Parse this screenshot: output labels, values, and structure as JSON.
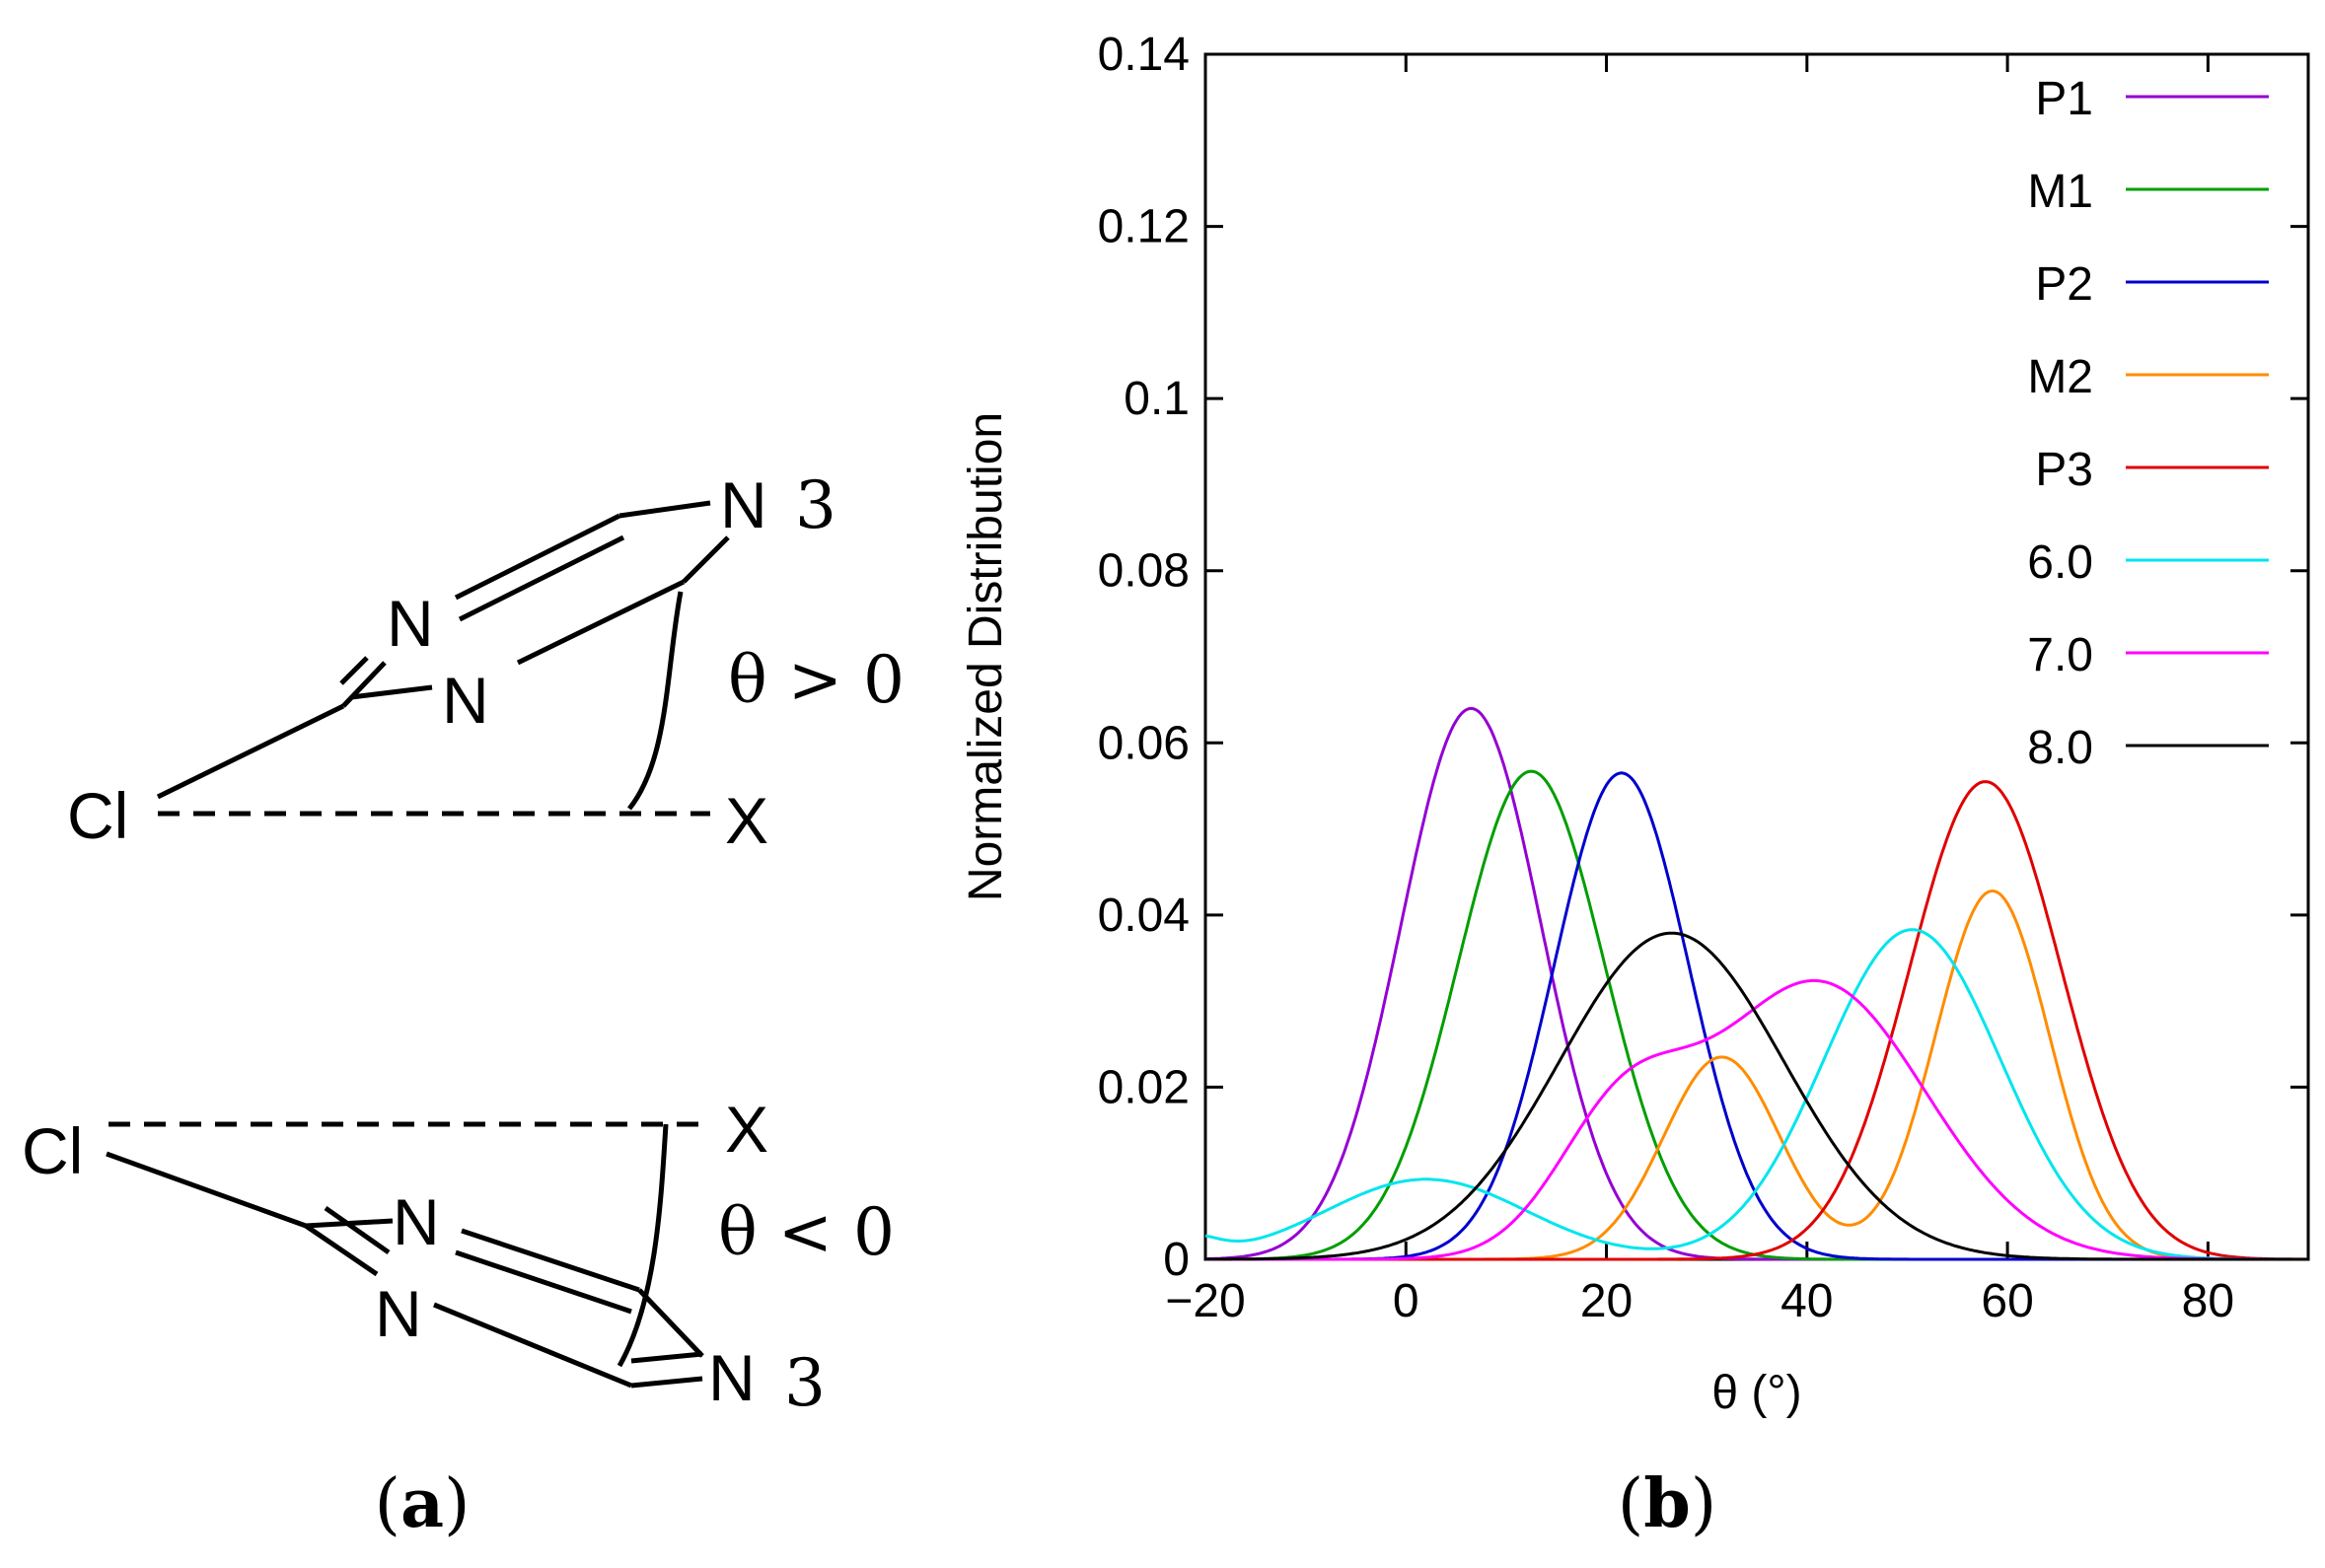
{
  "panel_a": {
    "caption_open": "(",
    "caption_letter": "a",
    "caption_close": ")",
    "top": {
      "n3_atom": "N",
      "n3_index": "3",
      "n_upper": "N",
      "n_lower": "N",
      "cl": "Cl",
      "x": "X",
      "theta_label": "θ > 0"
    },
    "bottom": {
      "cl": "Cl",
      "x": "X",
      "n_upper": "N",
      "n_lower": "N",
      "n3_atom": "N",
      "n3_index": "3",
      "theta_label": "θ < 0"
    }
  },
  "panel_b": {
    "caption_open": "(",
    "caption_letter": "b",
    "caption_close": ")"
  },
  "chart_data": {
    "type": "line",
    "xlabel": "θ (°)",
    "ylabel": "Normalized Distribution",
    "xlim": [
      -20,
      90
    ],
    "ylim": [
      0,
      0.14
    ],
    "xticks": [
      -20,
      0,
      20,
      40,
      60,
      80
    ],
    "xtick_labels": [
      "−20",
      "0",
      "20",
      "40",
      "60",
      "80"
    ],
    "yticks": [
      0,
      0.02,
      0.04,
      0.06,
      0.08,
      0.1,
      0.12,
      0.14
    ],
    "ytick_labels": [
      "0",
      "0.02",
      "0.04",
      "0.06",
      "0.08",
      "0.1",
      "0.12",
      "0.14"
    ],
    "legend_position": "top-right",
    "series": [
      {
        "name": "P1",
        "color": "#9400d3",
        "peaks": [
          {
            "mu": 6.5,
            "sigma": 7.0,
            "amp": 0.064
          }
        ]
      },
      {
        "name": "M1",
        "color": "#009e00",
        "peaks": [
          {
            "mu": 12.5,
            "sigma": 7.3,
            "amp": 0.0567
          }
        ]
      },
      {
        "name": "P2",
        "color": "#0000cd",
        "peaks": [
          {
            "mu": 21.5,
            "sigma": 6.7,
            "amp": 0.0565
          }
        ]
      },
      {
        "name": "M2",
        "color": "#ff8c00",
        "peaks": [
          {
            "mu": 31.5,
            "sigma": 5.8,
            "amp": 0.0235
          },
          {
            "mu": 58.5,
            "sigma": 5.7,
            "amp": 0.0428
          }
        ]
      },
      {
        "name": "P3",
        "color": "#e00000",
        "peaks": [
          {
            "mu": 57.8,
            "sigma": 7.6,
            "amp": 0.0555
          }
        ]
      },
      {
        "name": "6.0",
        "color": "#00e5ee",
        "peaks": [
          {
            "mu": 2.0,
            "sigma": 10.0,
            "amp": 0.0093
          },
          {
            "mu": 50.5,
            "sigma": 8.8,
            "amp": 0.0383
          },
          {
            "mu": -22.0,
            "sigma": 3.0,
            "amp": 0.0024
          }
        ]
      },
      {
        "name": "7.0",
        "color": "#ff00ff",
        "peaks": [
          {
            "mu": 21.5,
            "sigma": 6.5,
            "amp": 0.015
          },
          {
            "mu": 41.0,
            "sigma": 10.8,
            "amp": 0.0322
          }
        ]
      },
      {
        "name": "8.0",
        "color": "#000000",
        "peaks": [
          {
            "mu": 26.5,
            "sigma": 11.2,
            "amp": 0.0379
          }
        ]
      }
    ]
  }
}
